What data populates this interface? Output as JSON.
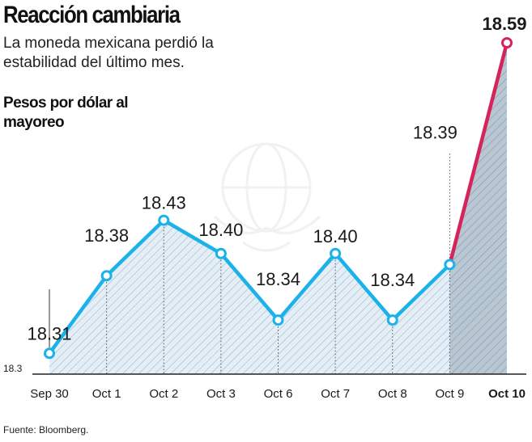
{
  "title": "Reacción cambiaria",
  "subtitle": "La moneda mexicana perdió la estabilidad del último mes.",
  "units_label": "Pesos por dólar al mayoreo",
  "source": "Fuente: Bloomberg.",
  "colors": {
    "line": "#1ab2e8",
    "highlight": "#d6245a",
    "area_light": "#e3eef6",
    "area_dark": "#b9c7d3",
    "hatch": "#8fa3b4"
  },
  "chart_data": {
    "type": "line",
    "categories": [
      "Sep 30",
      "Oct 1",
      "Oct 2",
      "Oct 3",
      "Oct 6",
      "Oct 7",
      "Oct 8",
      "Oct 9",
      "Oct 10"
    ],
    "values": [
      18.31,
      18.38,
      18.43,
      18.4,
      18.34,
      18.4,
      18.34,
      18.39,
      18.59
    ],
    "value_labels": [
      "18.31",
      "18.38",
      "18.43",
      "18.40",
      "18.34",
      "18.40",
      "18.34",
      "18.39",
      "18.59"
    ],
    "axis_min_label": "18.3",
    "ylim": [
      18.3,
      18.59
    ],
    "highlight_last": true,
    "legend": "none",
    "grid": false
  }
}
